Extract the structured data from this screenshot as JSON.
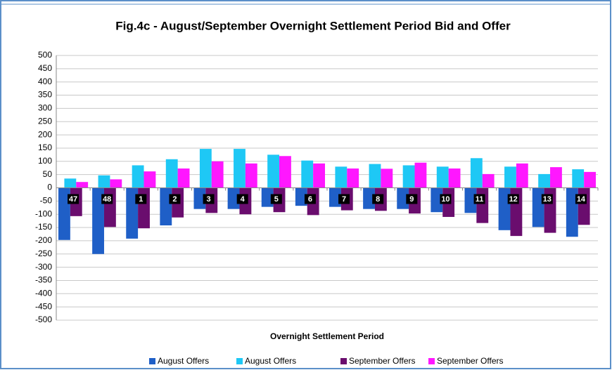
{
  "chart_data": {
    "type": "bar",
    "title": "Fig.4c - August/September Overnight Settlement Period Bid and Offer",
    "x_label": "Overnight Settlement Period",
    "categories": [
      "47",
      "48",
      "1",
      "2",
      "3",
      "4",
      "5",
      "6",
      "7",
      "8",
      "9",
      "10",
      "11",
      "12",
      "13",
      "14"
    ],
    "series": [
      {
        "name": "August Offers",
        "color": "#1f5fc7",
        "values": [
          -197,
          -250,
          -192,
          -142,
          -80,
          -80,
          -72,
          -68,
          -72,
          -80,
          -80,
          -92,
          -95,
          -160,
          -148,
          -185
        ]
      },
      {
        "name": "August Offers",
        "color": "#1ec8f5",
        "values": [
          35,
          47,
          85,
          108,
          147,
          147,
          125,
          103,
          80,
          90,
          85,
          80,
          112,
          80,
          52,
          70
        ]
      },
      {
        "name": "September Offers",
        "color": "#6a0d6e",
        "values": [
          -107,
          -148,
          -153,
          -112,
          -95,
          -100,
          -92,
          -103,
          -85,
          -87,
          -97,
          -110,
          -133,
          -182,
          -170,
          -140
        ]
      },
      {
        "name": "September Offers",
        "color": "#ff17ff",
        "values": [
          22,
          32,
          62,
          73,
          100,
          92,
          120,
          92,
          73,
          72,
          95,
          73,
          52,
          92,
          78,
          60
        ]
      }
    ],
    "ylim": [
      -500,
      500
    ],
    "yticks": [
      -500,
      -450,
      -400,
      -350,
      -300,
      -250,
      -200,
      -150,
      -100,
      -50,
      0,
      50,
      100,
      150,
      200,
      250,
      300,
      350,
      400,
      450,
      500
    ],
    "grid": true,
    "legend": "bottom"
  }
}
